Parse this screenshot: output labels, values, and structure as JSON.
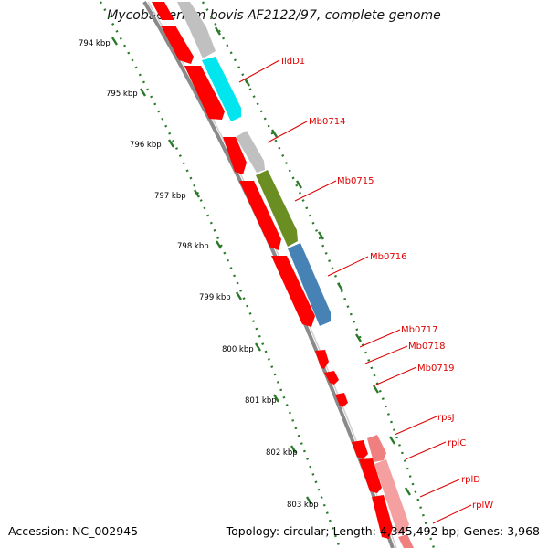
{
  "title": "Mycobacterium bovis AF2122/97, complete genome",
  "accession": "Accession: NC_002945",
  "topology": "Topology: circular; Length: 4,345,492 bp; Genes: 3,968",
  "colors": {
    "backbone": "#888888",
    "forward_cds": "#ff0000",
    "tick": "#2a7a2a",
    "label_text": "#e00000",
    "label_line": "#e00000",
    "gray_feature": "#c0c0c0",
    "cyan_feature": "#00e5ee",
    "olive_feature": "#6b8e23",
    "steel_feature": "#4682b4",
    "pink_feature": "#f08080"
  },
  "tick_labels": [
    "794 kbp",
    "795 kbp",
    "796 kbp",
    "797 kbp",
    "798 kbp",
    "799 kbp",
    "800 kbp",
    "801 kbp",
    "802 kbp",
    "803 kbp"
  ],
  "gene_labels": [
    "IldD1",
    "Mb0714",
    "Mb0715",
    "Mb0716",
    "Mb0717",
    "Mb0718",
    "Mb0719",
    "rpsJ",
    "rplC",
    "rplD",
    "rplW"
  ]
}
